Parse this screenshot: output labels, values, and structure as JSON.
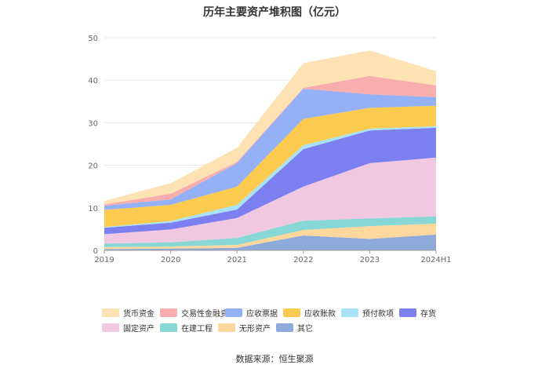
{
  "chart_data": {
    "type": "area",
    "title": "历年主要资产堆积图（亿元）",
    "x": [
      "2019",
      "2020",
      "2021",
      "2022",
      "2023",
      "2024H1"
    ],
    "ylim": [
      0,
      50
    ],
    "yticks": [
      0,
      10,
      20,
      30,
      40,
      50
    ],
    "stacked": true,
    "grid": true,
    "legend_position": "bottom",
    "series": [
      {
        "name": "其它",
        "color": "#8eaadb",
        "values": [
          0.3,
          0.4,
          0.6,
          3.5,
          2.7,
          3.7
        ]
      },
      {
        "name": "无形资产",
        "color": "#fdd79c",
        "values": [
          0.5,
          0.5,
          0.7,
          1.3,
          3.0,
          2.6
        ]
      },
      {
        "name": "在建工程",
        "color": "#86d7d6",
        "values": [
          0.8,
          1.0,
          1.6,
          2.2,
          1.8,
          1.7
        ]
      },
      {
        "name": "固定资产",
        "color": "#f0c8e2",
        "values": [
          2.2,
          3.0,
          4.7,
          8.0,
          13.0,
          13.8
        ]
      },
      {
        "name": "存货",
        "color": "#7b7ff0",
        "values": [
          1.5,
          1.6,
          2.0,
          8.8,
          7.7,
          7.0
        ]
      },
      {
        "name": "预付款项",
        "color": "#a8e2f8",
        "values": [
          0.2,
          0.4,
          1.1,
          0.9,
          0.4,
          0.4
        ]
      },
      {
        "name": "应收账款",
        "color": "#fcca4f",
        "values": [
          4.0,
          3.8,
          4.3,
          6.2,
          4.9,
          4.8
        ]
      },
      {
        "name": "应收票据",
        "color": "#94b1f7",
        "values": [
          1.0,
          1.3,
          5.5,
          7.1,
          3.2,
          2.0
        ]
      },
      {
        "name": "交易性金融资产",
        "color": "#f9adac",
        "values": [
          0.3,
          1.3,
          0.3,
          0.2,
          4.3,
          2.8
        ]
      },
      {
        "name": "货币资金",
        "color": "#fde2b3",
        "values": [
          0.8,
          2.5,
          3.3,
          5.8,
          6.0,
          3.3
        ]
      }
    ]
  },
  "legend_rows": [
    [
      "货币资金",
      "交易性金融资产",
      "应收票据",
      "应收账款",
      "预付款项",
      "存货"
    ],
    [
      "固定资产",
      "在建工程",
      "无形资产",
      "其它"
    ]
  ],
  "source_text": "数据来源：恒生聚源"
}
